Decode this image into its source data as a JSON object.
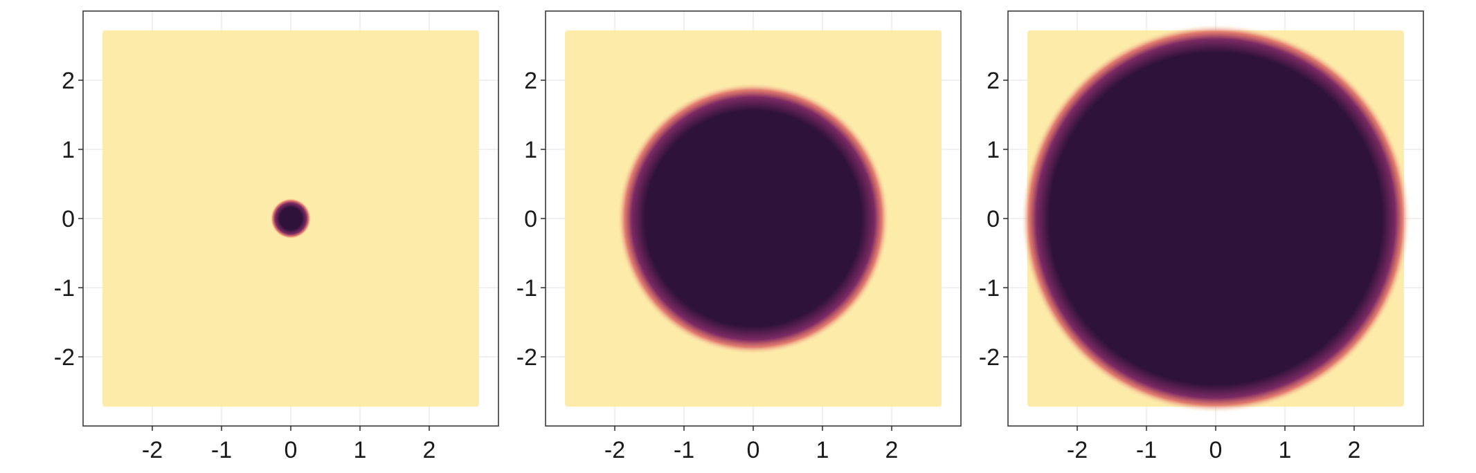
{
  "chart_data": [
    {
      "type": "heatmap",
      "title": "",
      "xlabel": "",
      "ylabel": "",
      "xlim": [
        -3.0,
        3.0
      ],
      "ylim": [
        -3.0,
        3.0
      ],
      "xticks": [
        -2,
        -1,
        0,
        1,
        2
      ],
      "yticks": [
        -2,
        -1,
        0,
        1,
        2
      ],
      "xtick_labels": [
        "-2",
        "-1",
        "0",
        "1",
        "2"
      ],
      "ytick_labels": [
        "-2",
        "-1",
        "0",
        "1",
        "2"
      ],
      "grid": true,
      "domain": {
        "xmin": -2.72,
        "xmax": 2.72,
        "ymin": -2.72,
        "ymax": 2.72
      },
      "background_color": "#fdebaa",
      "disc": {
        "center": [
          0,
          0
        ],
        "radius": 0.26,
        "edge_width": 0.1,
        "color": "#2e1239"
      }
    },
    {
      "type": "heatmap",
      "title": "",
      "xlabel": "",
      "ylabel": "",
      "xlim": [
        -3.0,
        3.0
      ],
      "ylim": [
        -3.0,
        3.0
      ],
      "xticks": [
        -2,
        -1,
        0,
        1,
        2
      ],
      "yticks": [
        -2,
        -1,
        0,
        1,
        2
      ],
      "xtick_labels": [
        "-2",
        "-1",
        "0",
        "1",
        "2"
      ],
      "ytick_labels": [
        "-2",
        "-1",
        "0",
        "1",
        "2"
      ],
      "grid": true,
      "domain": {
        "xmin": -2.72,
        "xmax": 2.72,
        "ymin": -2.72,
        "ymax": 2.72
      },
      "background_color": "#fdebaa",
      "disc": {
        "center": [
          0,
          0
        ],
        "radius": 1.86,
        "edge_width": 0.3,
        "color": "#2e1239"
      }
    },
    {
      "type": "heatmap",
      "title": "",
      "xlabel": "",
      "ylabel": "",
      "xlim": [
        -3.0,
        3.0
      ],
      "ylim": [
        -3.0,
        3.0
      ],
      "xticks": [
        -2,
        -1,
        0,
        1,
        2
      ],
      "yticks": [
        -2,
        -1,
        0,
        1,
        2
      ],
      "xtick_labels": [
        "-2",
        "-1",
        "0",
        "1",
        "2"
      ],
      "ytick_labels": [
        "-2",
        "-1",
        "0",
        "1",
        "2"
      ],
      "grid": true,
      "domain": {
        "xmin": -2.72,
        "xmax": 2.72,
        "ymin": -2.72,
        "ymax": 2.72
      },
      "background_color": "#fdebaa",
      "disc": {
        "center": [
          0,
          0
        ],
        "radius": 2.7,
        "edge_width": 0.3,
        "color": "#2e1239"
      }
    }
  ],
  "colors": {
    "field_low": "#fdebaa",
    "field_high": "#2e1239",
    "edge_mid": "#7b2a63",
    "edge_outer": "#d8575b"
  }
}
